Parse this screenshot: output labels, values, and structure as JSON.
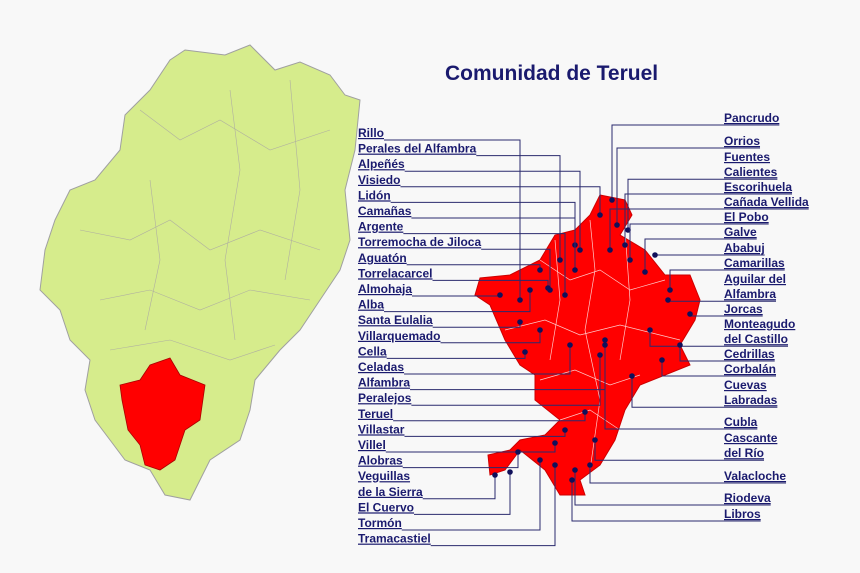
{
  "title": "Comunidad de Teruel",
  "left_labels": [
    [
      "Rillo"
    ],
    [
      "Perales del Alfambra"
    ],
    [
      "Alpeñés"
    ],
    [
      "Visiedo"
    ],
    [
      "Lidón"
    ],
    [
      "Camañas"
    ],
    [
      "Argente"
    ],
    [
      "Torremocha de Jiloca"
    ],
    [
      "Aguatón"
    ],
    [
      "Torrelacarcel"
    ],
    [
      "Almohaja"
    ],
    [
      "Alba"
    ],
    [
      "Santa Eulalia"
    ],
    [
      "Villarquemado"
    ],
    [
      "Cella"
    ],
    [
      "Celadas"
    ],
    [
      "Alfambra"
    ],
    [
      "Peralejos"
    ],
    [
      "Teruel"
    ],
    [
      "Villastar"
    ],
    [
      "Villel"
    ],
    [
      "Alobras"
    ],
    [
      "Veguillas",
      "de la Sierra"
    ],
    [
      "El Cuervo"
    ],
    [
      "Tormón"
    ],
    [
      "Tramacastiel"
    ]
  ],
  "right_labels": [
    [
      "Pancrudo"
    ],
    [
      "Orrios"
    ],
    [
      "Fuentes",
      "Calientes"
    ],
    [
      "Escorihuela"
    ],
    [
      "Cañada Vellida"
    ],
    [
      "El Pobo"
    ],
    [
      "Galve"
    ],
    [
      "Ababuj"
    ],
    [
      "Camarillas"
    ],
    [
      "Aguilar del",
      "Alfambra"
    ],
    [
      "Jorcas"
    ],
    [
      "Monteagudo",
      "del Castillo"
    ],
    [
      "Cedrillas"
    ],
    [
      "Corbalán"
    ],
    [
      "Cuevas",
      "Labradas"
    ],
    [
      "Cubla"
    ],
    [
      "Cascante",
      "del Río"
    ],
    [
      "Valacloche"
    ],
    [
      "Riodeva"
    ],
    [
      "Libros"
    ]
  ]
}
